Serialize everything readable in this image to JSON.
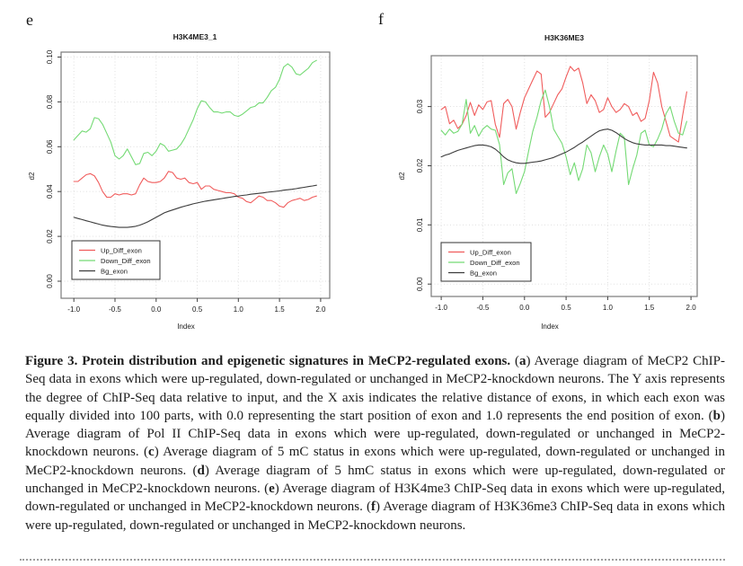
{
  "figure": {
    "panels": [
      {
        "letter": "e",
        "title": "H3K4ME3_1"
      },
      {
        "letter": "f",
        "title": "H3K36ME3"
      }
    ]
  },
  "colors": {
    "up_line": "#f05c5c",
    "down_line": "#74da74",
    "bg_line": "#3c3c3c",
    "grid": "#dcdcdc",
    "box": "#7a7a7a",
    "tick": "#404040",
    "text": "#1a1a1a",
    "rule": "#9e9e9e"
  },
  "chart_data": [
    {
      "type": "line",
      "title": "H3K4ME3_1",
      "xlabel": "Index",
      "ylabel": "d2",
      "xlim": [
        -1.155,
        2.11
      ],
      "ylim": [
        -0.0076,
        0.1022
      ],
      "xticks": [
        -1.0,
        -0.5,
        0.0,
        0.5,
        1.0,
        1.5,
        2.0
      ],
      "xtick_labels": [
        "-1.0",
        "-0.5",
        "0.0",
        "0.5",
        "1.0",
        "1.5",
        "2.0"
      ],
      "yticks": [
        0.0,
        0.02,
        0.04,
        0.06,
        0.08,
        0.1
      ],
      "ytick_labels": [
        "0.00",
        "0.02",
        "0.04",
        "0.06",
        "0.08",
        "0.10"
      ],
      "grid": true,
      "legend_position": "bottom-left",
      "x": [
        -1.0,
        -0.95,
        -0.9,
        -0.85,
        -0.8,
        -0.75,
        -0.7,
        -0.65,
        -0.6,
        -0.55,
        -0.5,
        -0.45,
        -0.4,
        -0.35,
        -0.3,
        -0.25,
        -0.2,
        -0.15,
        -0.1,
        -0.05,
        0.0,
        0.05,
        0.1,
        0.15,
        0.2,
        0.25,
        0.3,
        0.35,
        0.4,
        0.45,
        0.5,
        0.55,
        0.6,
        0.65,
        0.7,
        0.75,
        0.8,
        0.85,
        0.9,
        0.95,
        1.0,
        1.05,
        1.1,
        1.15,
        1.2,
        1.25,
        1.3,
        1.35,
        1.4,
        1.45,
        1.5,
        1.55,
        1.6,
        1.65,
        1.7,
        1.75,
        1.8,
        1.85,
        1.9,
        1.95
      ],
      "series": [
        {
          "name": "Up_Diff_exon",
          "color": "#f05c5c",
          "values": [
            0.0445,
            0.0445,
            0.046,
            0.0475,
            0.048,
            0.047,
            0.044,
            0.04,
            0.0375,
            0.0375,
            0.039,
            0.0385,
            0.039,
            0.039,
            0.0385,
            0.039,
            0.043,
            0.046,
            0.0445,
            0.044,
            0.044,
            0.0445,
            0.046,
            0.049,
            0.0485,
            0.046,
            0.0455,
            0.046,
            0.044,
            0.0435,
            0.044,
            0.041,
            0.0425,
            0.0425,
            0.041,
            0.0405,
            0.04,
            0.0395,
            0.0395,
            0.039,
            0.0375,
            0.037,
            0.0355,
            0.035,
            0.0365,
            0.038,
            0.0375,
            0.036,
            0.036,
            0.035,
            0.0335,
            0.033,
            0.035,
            0.036,
            0.0365,
            0.037,
            0.036,
            0.0365,
            0.0375,
            0.038
          ]
        },
        {
          "name": "Down_Diff_exon",
          "color": "#74da74",
          "values": [
            0.063,
            0.065,
            0.067,
            0.0665,
            0.068,
            0.073,
            0.0725,
            0.07,
            0.066,
            0.062,
            0.056,
            0.0545,
            0.056,
            0.059,
            0.0555,
            0.052,
            0.0525,
            0.057,
            0.0575,
            0.056,
            0.058,
            0.0615,
            0.0605,
            0.058,
            0.0585,
            0.059,
            0.061,
            0.064,
            0.068,
            0.072,
            0.077,
            0.0805,
            0.08,
            0.0775,
            0.0755,
            0.0755,
            0.075,
            0.0755,
            0.0755,
            0.074,
            0.0735,
            0.0745,
            0.076,
            0.0775,
            0.078,
            0.0795,
            0.0795,
            0.082,
            0.085,
            0.0865,
            0.09,
            0.0955,
            0.097,
            0.0955,
            0.0925,
            0.092,
            0.0935,
            0.095,
            0.0975,
            0.0985
          ]
        },
        {
          "name": "Bg_exon",
          "color": "#3c3c3c",
          "values": [
            0.0285,
            0.028,
            0.0275,
            0.027,
            0.0265,
            0.026,
            0.0255,
            0.025,
            0.0247,
            0.0244,
            0.0242,
            0.024,
            0.024,
            0.024,
            0.0242,
            0.0245,
            0.025,
            0.0257,
            0.0265,
            0.0275,
            0.0285,
            0.0295,
            0.0305,
            0.0312,
            0.0318,
            0.0324,
            0.033,
            0.0335,
            0.034,
            0.0345,
            0.0349,
            0.0353,
            0.0357,
            0.036,
            0.0363,
            0.0366,
            0.0369,
            0.0372,
            0.0375,
            0.0378,
            0.038,
            0.0383,
            0.0385,
            0.0388,
            0.039,
            0.0392,
            0.0394,
            0.0397,
            0.0399,
            0.0401,
            0.0403,
            0.0406,
            0.0408,
            0.041,
            0.0413,
            0.0416,
            0.0419,
            0.0422,
            0.0425,
            0.0428
          ]
        }
      ]
    },
    {
      "type": "line",
      "title": "H3K36ME3",
      "xlabel": "Index",
      "ylabel": "d2",
      "xlim": [
        -1.12,
        2.075
      ],
      "ylim": [
        -0.0021,
        0.0386
      ],
      "xticks": [
        -1.0,
        -0.5,
        0.0,
        0.5,
        1.0,
        1.5,
        2.0
      ],
      "xtick_labels": [
        "-1.0",
        "-0.5",
        "0.0",
        "0.5",
        "1.0",
        "1.5",
        "2.0"
      ],
      "yticks": [
        0.0,
        0.01,
        0.02,
        0.03
      ],
      "ytick_labels": [
        "0.00",
        "0.01",
        "0.02",
        "0.03"
      ],
      "grid": true,
      "legend_position": "bottom-left",
      "x": [
        -1.0,
        -0.95,
        -0.9,
        -0.85,
        -0.8,
        -0.75,
        -0.7,
        -0.65,
        -0.6,
        -0.55,
        -0.5,
        -0.45,
        -0.4,
        -0.35,
        -0.3,
        -0.25,
        -0.2,
        -0.15,
        -0.1,
        -0.05,
        0.0,
        0.05,
        0.1,
        0.15,
        0.2,
        0.25,
        0.3,
        0.35,
        0.4,
        0.45,
        0.5,
        0.55,
        0.6,
        0.65,
        0.7,
        0.75,
        0.8,
        0.85,
        0.9,
        0.95,
        1.0,
        1.05,
        1.1,
        1.15,
        1.2,
        1.25,
        1.3,
        1.35,
        1.4,
        1.45,
        1.5,
        1.55,
        1.6,
        1.65,
        1.7,
        1.75,
        1.8,
        1.85,
        1.9,
        1.95
      ],
      "series": [
        {
          "name": "Up_Diff_exon",
          "color": "#f05c5c",
          "values": [
            0.0295,
            0.03,
            0.0271,
            0.0277,
            0.0263,
            0.027,
            0.0285,
            0.0307,
            0.0285,
            0.0303,
            0.0295,
            0.0308,
            0.031,
            0.027,
            0.0248,
            0.0305,
            0.0312,
            0.03,
            0.0262,
            0.029,
            0.0315,
            0.033,
            0.0345,
            0.036,
            0.0355,
            0.0282,
            0.029,
            0.0305,
            0.032,
            0.033,
            0.035,
            0.0368,
            0.036,
            0.0365,
            0.034,
            0.0305,
            0.032,
            0.031,
            0.029,
            0.0295,
            0.0315,
            0.03,
            0.029,
            0.0295,
            0.0305,
            0.03,
            0.0285,
            0.029,
            0.0275,
            0.028,
            0.031,
            0.0358,
            0.034,
            0.03,
            0.0275,
            0.025,
            0.0245,
            0.024,
            0.0285,
            0.0325
          ]
        },
        {
          "name": "Down_Diff_exon",
          "color": "#74da74",
          "values": [
            0.026,
            0.0252,
            0.0262,
            0.0255,
            0.0258,
            0.027,
            0.0312,
            0.0255,
            0.0268,
            0.025,
            0.0262,
            0.0268,
            0.0262,
            0.026,
            0.0236,
            0.0168,
            0.0188,
            0.0195,
            0.0153,
            0.017,
            0.019,
            0.0225,
            0.0258,
            0.0282,
            0.031,
            0.0328,
            0.03,
            0.0262,
            0.025,
            0.0238,
            0.0215,
            0.0185,
            0.0205,
            0.0175,
            0.0195,
            0.0235,
            0.0222,
            0.019,
            0.0215,
            0.0235,
            0.022,
            0.019,
            0.0225,
            0.0255,
            0.0248,
            0.0168,
            0.0195,
            0.0218,
            0.0255,
            0.026,
            0.0235,
            0.0232,
            0.0245,
            0.0262,
            0.0288,
            0.03,
            0.0275,
            0.0255,
            0.0252,
            0.0275
          ]
        },
        {
          "name": "Bg_exon",
          "color": "#3c3c3c",
          "values": [
            0.0215,
            0.0218,
            0.022,
            0.0223,
            0.0226,
            0.0228,
            0.023,
            0.0232,
            0.0234,
            0.0235,
            0.0235,
            0.0234,
            0.0232,
            0.0228,
            0.0222,
            0.0215,
            0.021,
            0.0207,
            0.0205,
            0.0204,
            0.0204,
            0.0205,
            0.0206,
            0.0207,
            0.0208,
            0.021,
            0.0212,
            0.0214,
            0.0217,
            0.022,
            0.0223,
            0.0227,
            0.0231,
            0.0236,
            0.024,
            0.0245,
            0.025,
            0.0255,
            0.0259,
            0.0261,
            0.0262,
            0.026,
            0.0256,
            0.0251,
            0.0246,
            0.0242,
            0.0239,
            0.0237,
            0.0236,
            0.0235,
            0.0235,
            0.0235,
            0.0235,
            0.0235,
            0.0234,
            0.0234,
            0.0233,
            0.0232,
            0.0231,
            0.023
          ]
        }
      ]
    }
  ],
  "caption": {
    "segments": [
      {
        "text": "Figure 3. Protein distribution and epigenetic signatures in MeCP2-regulated exons. ",
        "bold": true
      },
      {
        "text": "(",
        "bold": false
      },
      {
        "text": "a",
        "bold": true
      },
      {
        "text": ") Average diagram of MeCP2 ChIP-Seq data in exons which were up-regulated, down-regulated or unchanged in MeCP2-knockdown neurons. The Y axis represents the degree of ChIP-Seq data relative to input, and the X axis indicates the relative distance of exons, in which each exon was equally divided into 100 parts, with 0.0 representing the start position of exon and 1.0 represents the end position of exon. (",
        "bold": false
      },
      {
        "text": "b",
        "bold": true
      },
      {
        "text": ") Average diagram of Pol II ChIP-Seq data in exons which were up-regulated, down-regulated or unchanged in MeCP2-knockdown neurons. (",
        "bold": false
      },
      {
        "text": "c",
        "bold": true
      },
      {
        "text": ") Average diagram of 5 mC status in exons which were up-regulated, down-regulated or unchanged in MeCP2-knockdown neurons. (",
        "bold": false
      },
      {
        "text": "d",
        "bold": true
      },
      {
        "text": ") Average diagram of 5 hmC status in exons which were up-regulated, down-regulated or unchanged in MeCP2-knockdown neurons. (",
        "bold": false
      },
      {
        "text": "e",
        "bold": true
      },
      {
        "text": ") Average diagram of H3K4me3 ChIP-Seq data in exons which were up-regulated, down-regulated or unchanged in MeCP2-knockdown neurons. (",
        "bold": false
      },
      {
        "text": "f",
        "bold": true
      },
      {
        "text": ") Average diagram of H3K36me3 ChIP-Seq data in exons which were up-regulated, down-regulated or unchanged in MeCP2-knockdown neurons.",
        "bold": false
      }
    ]
  }
}
